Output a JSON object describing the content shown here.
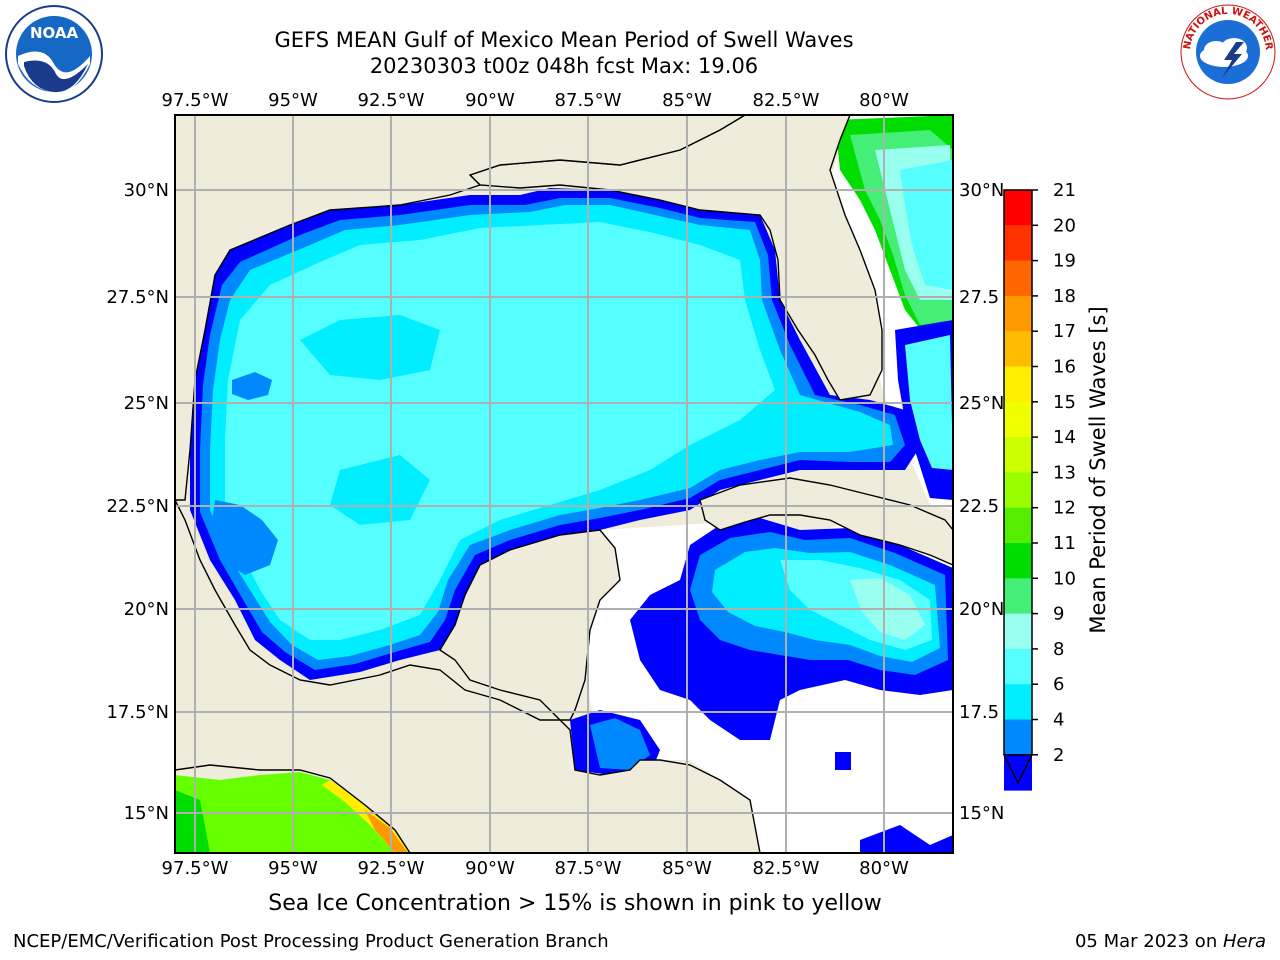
{
  "title": {
    "line1": "GEFS MEAN Gulf of Mexico Mean Period of Swell Waves",
    "line2": "20230303 t00z 048h fcst   Max: 19.06"
  },
  "map": {
    "lon_ticks": [
      "97.5°W",
      "95°W",
      "92.5°W",
      "90°W",
      "87.5°W",
      "85°W",
      "82.5°W",
      "80°W"
    ],
    "lat_ticks_left": [
      "30°N",
      "27.5°N",
      "25°N",
      "22.5°N",
      "20°N",
      "17.5°N",
      "15°N"
    ],
    "lat_ticks_right": [
      "30°N",
      "27.5",
      "25°N",
      "22.5",
      "20°N",
      "17.5",
      "15°N"
    ],
    "land_color": "#efecdc",
    "grid_color": "#b0b0b0"
  },
  "colorbar": {
    "label": "Mean Period of Swell Waves [s]",
    "ticks": [
      "21",
      "20",
      "19",
      "18",
      "17",
      "16",
      "15",
      "14",
      "13",
      "12",
      "11",
      "10",
      "9",
      "8",
      "6",
      "4",
      "2"
    ],
    "colors": [
      "#ff0000",
      "#ff3300",
      "#ff6600",
      "#ff9900",
      "#ffbb00",
      "#ffee00",
      "#f0ff00",
      "#ccff00",
      "#99ff00",
      "#55ee00",
      "#00dd00",
      "#44ee77",
      "#99ffee",
      "#55ffff",
      "#00eeff",
      "#0088ff",
      "#0000ff"
    ]
  },
  "caption": "Sea Ice Concentration > 15% is shown in pink to yellow",
  "footer": {
    "left": "NCEP/EMC/Verification Post Processing Product Generation Branch",
    "date": "05 Mar 2023 on ",
    "machine": "Hera"
  },
  "logos": {
    "noaa_text": "NOAA",
    "nws_text": "NATIONAL WEATHER SERVICE"
  }
}
